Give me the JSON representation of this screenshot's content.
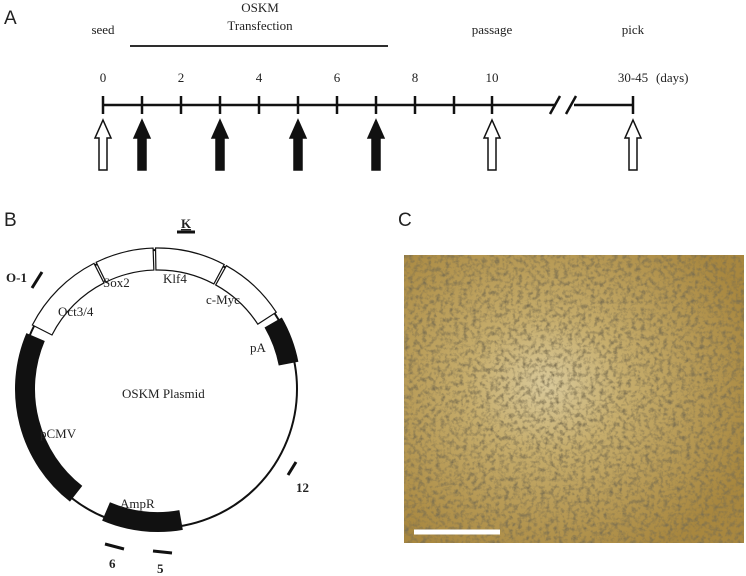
{
  "panel_a": {
    "label": "A",
    "seed": "seed",
    "transfection": [
      "OSKM",
      "Transfection"
    ],
    "passage": "passage",
    "pick": "pick",
    "ticks": [
      "0",
      "2",
      "4",
      "6",
      "8",
      "10",
      "30-45"
    ],
    "unit": "(days)"
  },
  "panel_b": {
    "label": "B",
    "title": "OSKM Plasmid",
    "k": "K",
    "o1": "O-1",
    "sox2": "Sox2",
    "klf4": "Klf4",
    "cmyc": "c-Myc",
    "oct34": "Oct3/4",
    "pa": "pA",
    "pcmv": "pCMV",
    "ampr": "AmpR",
    "p12": "12",
    "p6": "6",
    "p5": "5"
  },
  "panel_c": {
    "label": "C"
  }
}
